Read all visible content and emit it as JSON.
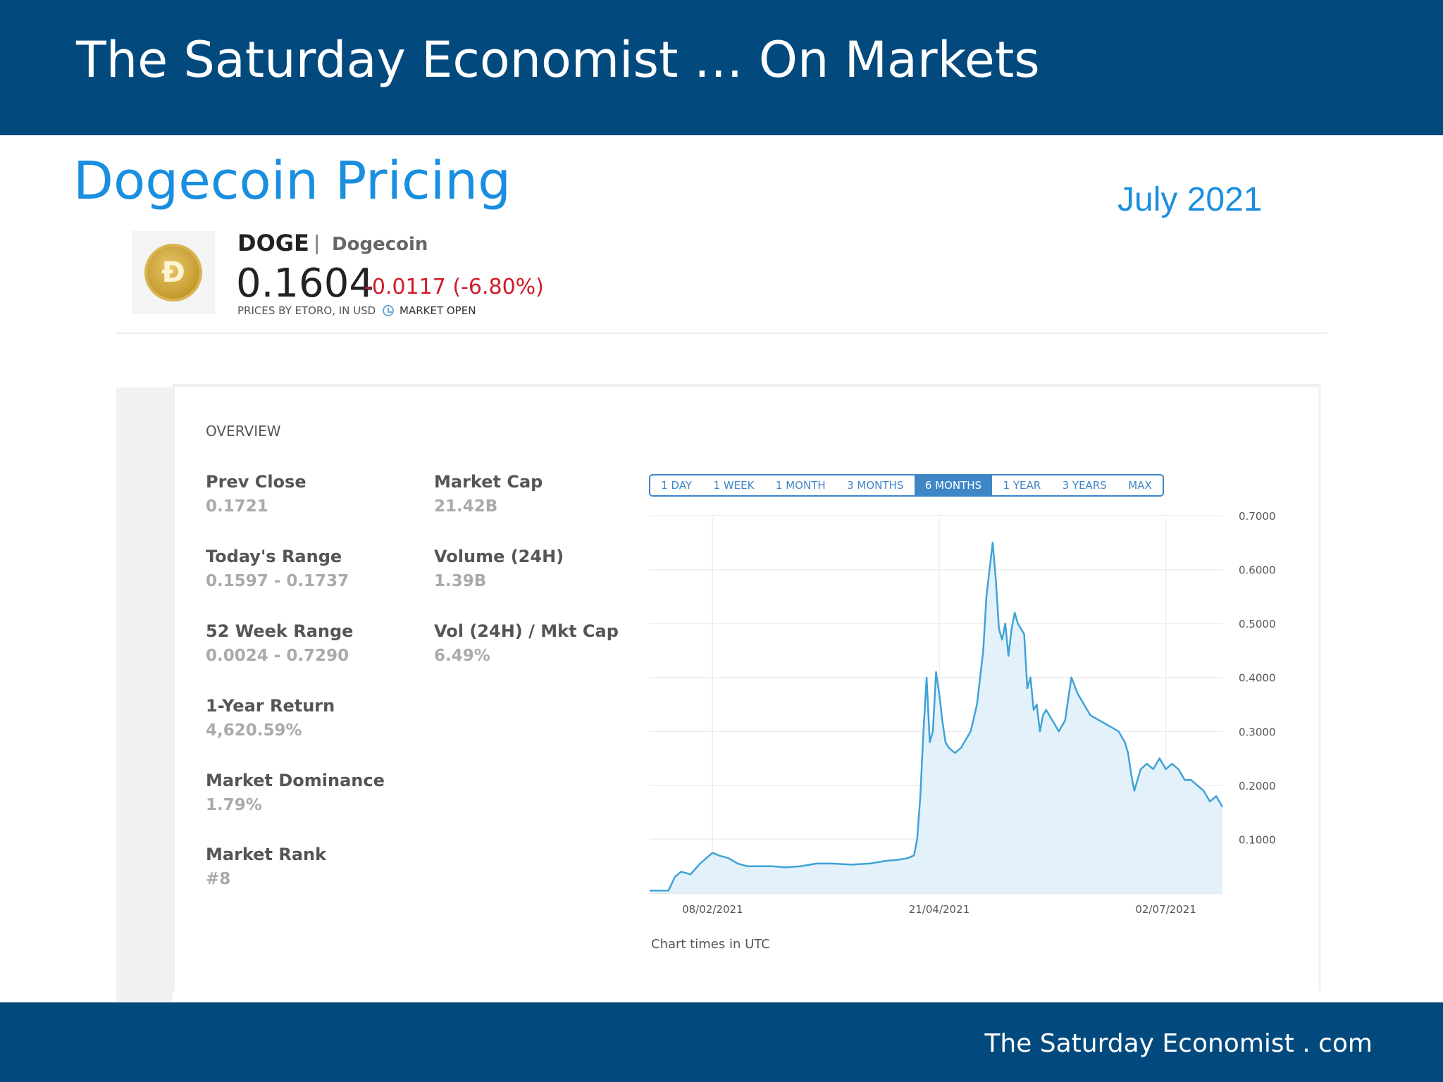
{
  "header": {
    "title": "The Saturday Economist … On Markets"
  },
  "slide": {
    "heading": "Dogecoin Pricing",
    "date": "July 2021"
  },
  "coin": {
    "ticker": "DOGE",
    "separator": "|",
    "name": "Dogecoin",
    "price": "0.1604",
    "change": "-0.0117 (-6.80%)",
    "source": "PRICES BY ETORO, IN USD",
    "market_status": "MARKET OPEN",
    "logo_icon": "dogecoin-logo-icon",
    "logo_glyph": "Ð"
  },
  "overview": {
    "label": "OVERVIEW",
    "stats": [
      {
        "label": "Prev Close",
        "value": "0.1721"
      },
      {
        "label": "Market Cap",
        "value": "21.42B"
      },
      {
        "label": "Today's Range",
        "value": "0.1597 - 0.1737"
      },
      {
        "label": "Volume (24H)",
        "value": "1.39B"
      },
      {
        "label": "52 Week Range",
        "value": "0.0024 - 0.7290"
      },
      {
        "label": "Vol (24H) / Mkt Cap",
        "value": "6.49%"
      },
      {
        "label": "1-Year Return",
        "value": "4,620.59%"
      },
      {
        "label": "Market Dominance",
        "value": "1.79%"
      },
      {
        "label": "Market Rank",
        "value": "#8"
      }
    ]
  },
  "range_selector": {
    "options": [
      "1 DAY",
      "1 WEEK",
      "1 MONTH",
      "3 MONTHS",
      "6 MONTHS",
      "1 YEAR",
      "3 YEARS",
      "MAX"
    ],
    "selected": "6 MONTHS"
  },
  "chart_note": "Chart times in UTC",
  "footer": {
    "site": "The Saturday Economist . com"
  },
  "colors": {
    "banner": "#024a7e",
    "accent": "#1a8ee0",
    "line": "#3fa3d6",
    "negative": "#d11a2a"
  },
  "chart_data": {
    "type": "area",
    "ylim": [
      0,
      0.7
    ],
    "yticks": [
      0.7,
      0.6,
      0.5,
      0.4,
      0.3,
      0.2,
      0.1
    ],
    "ytick_labels": [
      "0.7000",
      "0.6000",
      "0.5000",
      "0.4000",
      "0.3000",
      "0.2000",
      "0.1000"
    ],
    "xticks": [
      {
        "date": "2021-02-08",
        "label": "08/02/2021"
      },
      {
        "date": "2021-04-21",
        "label": "21/04/2021"
      },
      {
        "date": "2021-07-02",
        "label": "02/07/2021"
      }
    ],
    "xlim": [
      "2021-01-19",
      "2021-07-20"
    ],
    "grid": true,
    "series": [
      {
        "points": [
          [
            "2021-01-19",
            0.005
          ],
          [
            "2021-01-25",
            0.005
          ],
          [
            "2021-01-27",
            0.03
          ],
          [
            "2021-01-29",
            0.04
          ],
          [
            "2021-02-01",
            0.035
          ],
          [
            "2021-02-04",
            0.055
          ],
          [
            "2021-02-07",
            0.07
          ],
          [
            "2021-02-08",
            0.075
          ],
          [
            "2021-02-10",
            0.07
          ],
          [
            "2021-02-13",
            0.065
          ],
          [
            "2021-02-16",
            0.055
          ],
          [
            "2021-02-19",
            0.05
          ],
          [
            "2021-02-23",
            0.05
          ],
          [
            "2021-02-27",
            0.05
          ],
          [
            "2021-03-03",
            0.048
          ],
          [
            "2021-03-08",
            0.05
          ],
          [
            "2021-03-13",
            0.055
          ],
          [
            "2021-03-18",
            0.055
          ],
          [
            "2021-03-24",
            0.053
          ],
          [
            "2021-03-30",
            0.055
          ],
          [
            "2021-04-04",
            0.06
          ],
          [
            "2021-04-08",
            0.062
          ],
          [
            "2021-04-11",
            0.065
          ],
          [
            "2021-04-13",
            0.07
          ],
          [
            "2021-04-14",
            0.1
          ],
          [
            "2021-04-15",
            0.18
          ],
          [
            "2021-04-16",
            0.3
          ],
          [
            "2021-04-17",
            0.4
          ],
          [
            "2021-04-18",
            0.28
          ],
          [
            "2021-04-19",
            0.3
          ],
          [
            "2021-04-20",
            0.41
          ],
          [
            "2021-04-21",
            0.37
          ],
          [
            "2021-04-22",
            0.32
          ],
          [
            "2021-04-23",
            0.28
          ],
          [
            "2021-04-24",
            0.27
          ],
          [
            "2021-04-26",
            0.26
          ],
          [
            "2021-04-28",
            0.27
          ],
          [
            "2021-05-01",
            0.3
          ],
          [
            "2021-05-03",
            0.35
          ],
          [
            "2021-05-05",
            0.45
          ],
          [
            "2021-05-06",
            0.55
          ],
          [
            "2021-05-07",
            0.6
          ],
          [
            "2021-05-08",
            0.65
          ],
          [
            "2021-05-09",
            0.58
          ],
          [
            "2021-05-10",
            0.49
          ],
          [
            "2021-05-11",
            0.47
          ],
          [
            "2021-05-12",
            0.5
          ],
          [
            "2021-05-13",
            0.44
          ],
          [
            "2021-05-14",
            0.49
          ],
          [
            "2021-05-15",
            0.52
          ],
          [
            "2021-05-16",
            0.5
          ],
          [
            "2021-05-18",
            0.48
          ],
          [
            "2021-05-19",
            0.38
          ],
          [
            "2021-05-20",
            0.4
          ],
          [
            "2021-05-21",
            0.34
          ],
          [
            "2021-05-22",
            0.35
          ],
          [
            "2021-05-23",
            0.3
          ],
          [
            "2021-05-24",
            0.33
          ],
          [
            "2021-05-25",
            0.34
          ],
          [
            "2021-05-27",
            0.32
          ],
          [
            "2021-05-29",
            0.3
          ],
          [
            "2021-05-31",
            0.32
          ],
          [
            "2021-06-02",
            0.4
          ],
          [
            "2021-06-04",
            0.37
          ],
          [
            "2021-06-06",
            0.35
          ],
          [
            "2021-06-08",
            0.33
          ],
          [
            "2021-06-11",
            0.32
          ],
          [
            "2021-06-14",
            0.31
          ],
          [
            "2021-06-17",
            0.3
          ],
          [
            "2021-06-19",
            0.28
          ],
          [
            "2021-06-20",
            0.26
          ],
          [
            "2021-06-21",
            0.22
          ],
          [
            "2021-06-22",
            0.19
          ],
          [
            "2021-06-24",
            0.23
          ],
          [
            "2021-06-26",
            0.24
          ],
          [
            "2021-06-28",
            0.23
          ],
          [
            "2021-06-30",
            0.25
          ],
          [
            "2021-07-02",
            0.23
          ],
          [
            "2021-07-04",
            0.24
          ],
          [
            "2021-07-06",
            0.23
          ],
          [
            "2021-07-08",
            0.21
          ],
          [
            "2021-07-10",
            0.21
          ],
          [
            "2021-07-12",
            0.2
          ],
          [
            "2021-07-14",
            0.19
          ],
          [
            "2021-07-16",
            0.17
          ],
          [
            "2021-07-18",
            0.18
          ],
          [
            "2021-07-20",
            0.16
          ]
        ]
      }
    ]
  }
}
